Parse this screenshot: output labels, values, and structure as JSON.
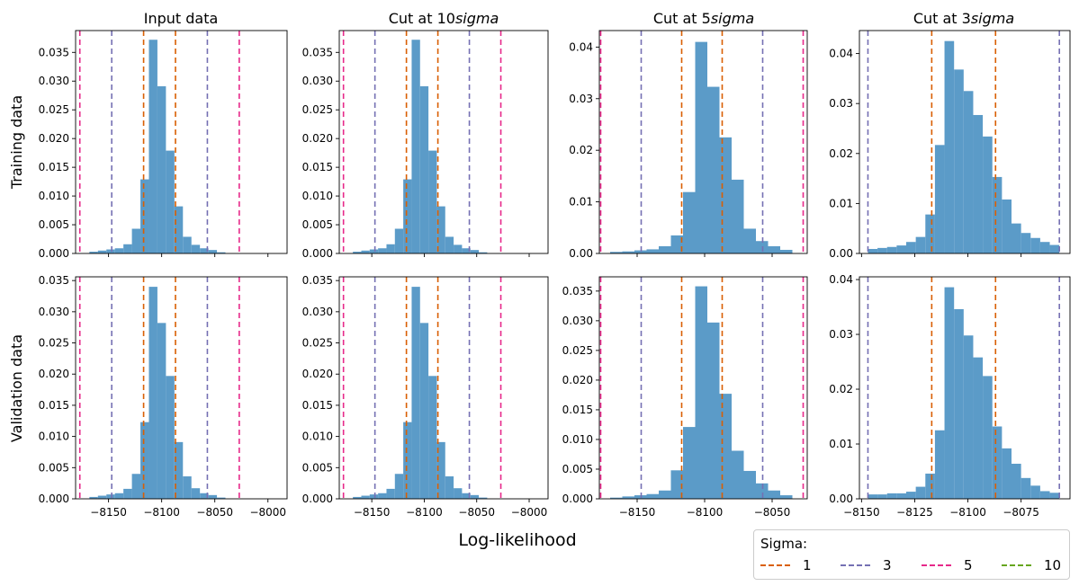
{
  "figure": {
    "x_label": "Log-likelihood",
    "column_titles": [
      {
        "prefix": "Input data",
        "italic": ""
      },
      {
        "prefix": "Cut at 10",
        "italic": "sigma"
      },
      {
        "prefix": "Cut at 5",
        "italic": "sigma"
      },
      {
        "prefix": "Cut at 3",
        "italic": "sigma"
      }
    ],
    "row_labels": [
      "Training data",
      "Validation data"
    ]
  },
  "legend": {
    "title": "Sigma:",
    "entries": [
      {
        "label": "1",
        "color": "#d95f02"
      },
      {
        "label": "3",
        "color": "#7570b3"
      },
      {
        "label": "5",
        "color": "#e7298a"
      },
      {
        "label": "10",
        "color": "#66a61e"
      }
    ]
  },
  "colors": {
    "bars": "#5b9bc8"
  },
  "chart_data": [
    {
      "type": "bar",
      "subtype": "histogram",
      "row": "Training data",
      "column": "Input data",
      "bins": [
        [
          -8168,
          -8160
        ],
        [
          -8160,
          -8152
        ],
        [
          -8152,
          -8144
        ],
        [
          -8144,
          -8136
        ],
        [
          -8136,
          -8128
        ],
        [
          -8128,
          -8120
        ],
        [
          -8120,
          -8112
        ],
        [
          -8112,
          -8104
        ],
        [
          -8104,
          -8096
        ],
        [
          -8096,
          -8088
        ],
        [
          -8088,
          -8080
        ],
        [
          -8080,
          -8072
        ],
        [
          -8072,
          -8064
        ],
        [
          -8064,
          -8056
        ],
        [
          -8056,
          -8048
        ],
        [
          -8048,
          -8040
        ]
      ],
      "values": [
        0.0003,
        0.0005,
        0.0007,
        0.0009,
        0.0016,
        0.0043,
        0.0129,
        0.0372,
        0.0291,
        0.0179,
        0.0082,
        0.0029,
        0.0015,
        0.0009,
        0.0006,
        0.0002
      ],
      "vlines": [
        {
          "sigma": "1",
          "x": [
            -8117,
            -8087
          ]
        },
        {
          "sigma": "3",
          "x": [
            -8147,
            -8057
          ]
        },
        {
          "sigma": "5",
          "x": [
            -8177,
            -8027
          ]
        }
      ],
      "xlim": [
        -8181,
        -7982
      ],
      "ylim": [
        0,
        0.0388
      ],
      "xticks": [
        -8150,
        -8100,
        -8050,
        -8000
      ],
      "yticks": [
        0,
        0.005,
        0.01,
        0.015,
        0.02,
        0.025,
        0.03,
        0.035
      ],
      "ytick_labels": [
        "0.000",
        "0.005",
        "0.010",
        "0.015",
        "0.020",
        "0.025",
        "0.030",
        "0.035"
      ]
    },
    {
      "type": "bar",
      "subtype": "histogram",
      "row": "Training data",
      "column": "Cut at 10sigma",
      "bins": [
        [
          -8168,
          -8160
        ],
        [
          -8160,
          -8152
        ],
        [
          -8152,
          -8144
        ],
        [
          -8144,
          -8136
        ],
        [
          -8136,
          -8128
        ],
        [
          -8128,
          -8120
        ],
        [
          -8120,
          -8112
        ],
        [
          -8112,
          -8104
        ],
        [
          -8104,
          -8096
        ],
        [
          -8096,
          -8088
        ],
        [
          -8088,
          -8080
        ],
        [
          -8080,
          -8072
        ],
        [
          -8072,
          -8064
        ],
        [
          -8064,
          -8056
        ],
        [
          -8056,
          -8048
        ],
        [
          -8048,
          -8040
        ]
      ],
      "values": [
        0.0003,
        0.0005,
        0.0007,
        0.0009,
        0.0016,
        0.0043,
        0.0129,
        0.0372,
        0.0291,
        0.0179,
        0.0082,
        0.0029,
        0.0015,
        0.0009,
        0.0006,
        0.0002
      ],
      "vlines": [
        {
          "sigma": "1",
          "x": [
            -8117,
            -8087
          ]
        },
        {
          "sigma": "3",
          "x": [
            -8147,
            -8057
          ]
        },
        {
          "sigma": "5",
          "x": [
            -8177,
            -8027
          ]
        }
      ],
      "xlim": [
        -8181,
        -7982
      ],
      "ylim": [
        0,
        0.0388
      ],
      "xticks": [
        -8150,
        -8100,
        -8050,
        -8000
      ],
      "yticks": [
        0,
        0.005,
        0.01,
        0.015,
        0.02,
        0.025,
        0.03,
        0.035
      ],
      "ytick_labels": [
        "0.000",
        "0.005",
        "0.010",
        "0.015",
        "0.020",
        "0.025",
        "0.030",
        "0.035"
      ]
    },
    {
      "type": "bar",
      "subtype": "histogram",
      "row": "Training data",
      "column": "Cut at 5sigma",
      "bins": [
        [
          -8170,
          -8161
        ],
        [
          -8161,
          -8152
        ],
        [
          -8152,
          -8143
        ],
        [
          -8143,
          -8134
        ],
        [
          -8134,
          -8125
        ],
        [
          -8125,
          -8116
        ],
        [
          -8116,
          -8107
        ],
        [
          -8107,
          -8098
        ],
        [
          -8098,
          -8089
        ],
        [
          -8089,
          -8080
        ],
        [
          -8080,
          -8071
        ],
        [
          -8071,
          -8062
        ],
        [
          -8062,
          -8053
        ],
        [
          -8053,
          -8044
        ],
        [
          -8044,
          -8035
        ]
      ],
      "values": [
        0.0003,
        0.0004,
        0.0006,
        0.0008,
        0.0014,
        0.0035,
        0.0119,
        0.041,
        0.0323,
        0.0225,
        0.0143,
        0.0048,
        0.0024,
        0.0014,
        0.0007
      ],
      "vlines": [
        {
          "sigma": "1",
          "x": [
            -8117,
            -8087
          ]
        },
        {
          "sigma": "3",
          "x": [
            -8147,
            -8057
          ]
        },
        {
          "sigma": "5",
          "x": [
            -8177,
            -8027
          ]
        }
      ],
      "xlim": [
        -8178,
        -8024
      ],
      "ylim": [
        0,
        0.0432
      ],
      "xticks": [
        -8150,
        -8100,
        -8050
      ],
      "yticks": [
        0,
        0.01,
        0.02,
        0.03,
        0.04
      ],
      "ytick_labels": [
        "0.00",
        "0.01",
        "0.02",
        "0.03",
        "0.04"
      ]
    },
    {
      "type": "bar",
      "subtype": "histogram",
      "row": "Training data",
      "column": "Cut at 3sigma",
      "bins": [
        [
          -8147,
          -8142.5
        ],
        [
          -8142.5,
          -8138
        ],
        [
          -8138,
          -8133.5
        ],
        [
          -8133.5,
          -8129
        ],
        [
          -8129,
          -8124.5
        ],
        [
          -8124.5,
          -8120
        ],
        [
          -8120,
          -8115.5
        ],
        [
          -8115.5,
          -8111
        ],
        [
          -8111,
          -8106.5
        ],
        [
          -8106.5,
          -8102
        ],
        [
          -8102,
          -8097.5
        ],
        [
          -8097.5,
          -8093
        ],
        [
          -8093,
          -8088.5
        ],
        [
          -8088.5,
          -8084
        ],
        [
          -8084,
          -8079.5
        ],
        [
          -8079.5,
          -8075
        ],
        [
          -8075,
          -8070.5
        ],
        [
          -8070.5,
          -8066
        ],
        [
          -8066,
          -8061.5
        ],
        [
          -8061.5,
          -8057
        ]
      ],
      "values": [
        0.0009,
        0.0011,
        0.0013,
        0.0016,
        0.0023,
        0.0033,
        0.0078,
        0.0217,
        0.0425,
        0.0368,
        0.0325,
        0.0277,
        0.0234,
        0.0153,
        0.0108,
        0.006,
        0.0041,
        0.0031,
        0.0023,
        0.0017
      ],
      "vlines": [
        {
          "sigma": "1",
          "x": [
            -8117,
            -8087
          ]
        },
        {
          "sigma": "3",
          "x": [
            -8147,
            -8057
          ]
        }
      ],
      "xlim": [
        -8151,
        -8052
      ],
      "ylim": [
        0,
        0.0446
      ],
      "xticks": [
        -8150,
        -8125,
        -8100,
        -8075
      ],
      "yticks": [
        0,
        0.01,
        0.02,
        0.03,
        0.04
      ],
      "ytick_labels": [
        "0.00",
        "0.01",
        "0.02",
        "0.03",
        "0.04"
      ]
    },
    {
      "type": "bar",
      "subtype": "histogram",
      "row": "Validation data",
      "column": "Input data",
      "bins": [
        [
          -8168,
          -8160
        ],
        [
          -8160,
          -8152
        ],
        [
          -8152,
          -8144
        ],
        [
          -8144,
          -8136
        ],
        [
          -8136,
          -8128
        ],
        [
          -8128,
          -8120
        ],
        [
          -8120,
          -8112
        ],
        [
          -8112,
          -8104
        ],
        [
          -8104,
          -8096
        ],
        [
          -8096,
          -8088
        ],
        [
          -8088,
          -8080
        ],
        [
          -8080,
          -8072
        ],
        [
          -8072,
          -8064
        ],
        [
          -8064,
          -8056
        ],
        [
          -8056,
          -8048
        ],
        [
          -8048,
          -8040
        ]
      ],
      "values": [
        0.0003,
        0.0005,
        0.0007,
        0.0009,
        0.0016,
        0.004,
        0.0123,
        0.034,
        0.0282,
        0.0197,
        0.0091,
        0.0036,
        0.0017,
        0.0009,
        0.0006,
        0.0002
      ],
      "vlines": [
        {
          "sigma": "1",
          "x": [
            -8117,
            -8087
          ]
        },
        {
          "sigma": "3",
          "x": [
            -8147,
            -8057
          ]
        },
        {
          "sigma": "5",
          "x": [
            -8177,
            -8027
          ]
        }
      ],
      "xlim": [
        -8181,
        -7982
      ],
      "ylim": [
        0,
        0.0356
      ],
      "xticks": [
        -8150,
        -8100,
        -8050,
        -8000
      ],
      "xtick_labels": [
        "−8150",
        "−8100",
        "−8050",
        "−8000"
      ],
      "yticks": [
        0,
        0.005,
        0.01,
        0.015,
        0.02,
        0.025,
        0.03,
        0.035
      ],
      "ytick_labels": [
        "0.000",
        "0.005",
        "0.010",
        "0.015",
        "0.020",
        "0.025",
        "0.030",
        "0.035"
      ]
    },
    {
      "type": "bar",
      "subtype": "histogram",
      "row": "Validation data",
      "column": "Cut at 10sigma",
      "bins": [
        [
          -8168,
          -8160
        ],
        [
          -8160,
          -8152
        ],
        [
          -8152,
          -8144
        ],
        [
          -8144,
          -8136
        ],
        [
          -8136,
          -8128
        ],
        [
          -8128,
          -8120
        ],
        [
          -8120,
          -8112
        ],
        [
          -8112,
          -8104
        ],
        [
          -8104,
          -8096
        ],
        [
          -8096,
          -8088
        ],
        [
          -8088,
          -8080
        ],
        [
          -8080,
          -8072
        ],
        [
          -8072,
          -8064
        ],
        [
          -8064,
          -8056
        ],
        [
          -8056,
          -8048
        ],
        [
          -8048,
          -8040
        ]
      ],
      "values": [
        0.0003,
        0.0005,
        0.0007,
        0.0009,
        0.0016,
        0.004,
        0.0123,
        0.034,
        0.0282,
        0.0197,
        0.0091,
        0.0036,
        0.0017,
        0.0009,
        0.0006,
        0.0002
      ],
      "vlines": [
        {
          "sigma": "1",
          "x": [
            -8117,
            -8087
          ]
        },
        {
          "sigma": "3",
          "x": [
            -8147,
            -8057
          ]
        },
        {
          "sigma": "5",
          "x": [
            -8177,
            -8027
          ]
        }
      ],
      "xlim": [
        -8181,
        -7982
      ],
      "ylim": [
        0,
        0.0356
      ],
      "xticks": [
        -8150,
        -8100,
        -8050,
        -8000
      ],
      "xtick_labels": [
        "−8150",
        "−8100",
        "−8050",
        "−8000"
      ],
      "yticks": [
        0,
        0.005,
        0.01,
        0.015,
        0.02,
        0.025,
        0.03,
        0.035
      ],
      "ytick_labels": [
        "0.000",
        "0.005",
        "0.010",
        "0.015",
        "0.020",
        "0.025",
        "0.030",
        "0.035"
      ]
    },
    {
      "type": "bar",
      "subtype": "histogram",
      "row": "Validation data",
      "column": "Cut at 5sigma",
      "bins": [
        [
          -8170,
          -8161
        ],
        [
          -8161,
          -8152
        ],
        [
          -8152,
          -8143
        ],
        [
          -8143,
          -8134
        ],
        [
          -8134,
          -8125
        ],
        [
          -8125,
          -8116
        ],
        [
          -8116,
          -8107
        ],
        [
          -8107,
          -8098
        ],
        [
          -8098,
          -8089
        ],
        [
          -8089,
          -8080
        ],
        [
          -8080,
          -8071
        ],
        [
          -8071,
          -8062
        ],
        [
          -8062,
          -8053
        ],
        [
          -8053,
          -8044
        ],
        [
          -8044,
          -8035
        ]
      ],
      "values": [
        0.0002,
        0.0004,
        0.0006,
        0.0008,
        0.0014,
        0.0048,
        0.0121,
        0.0358,
        0.0297,
        0.0177,
        0.0081,
        0.0047,
        0.0026,
        0.0014,
        0.0006
      ],
      "vlines": [
        {
          "sigma": "1",
          "x": [
            -8117,
            -8087
          ]
        },
        {
          "sigma": "3",
          "x": [
            -8147,
            -8057
          ]
        },
        {
          "sigma": "5",
          "x": [
            -8177,
            -8027
          ]
        }
      ],
      "xlim": [
        -8178,
        -8024
      ],
      "ylim": [
        0,
        0.0374
      ],
      "xticks": [
        -8150,
        -8100,
        -8050
      ],
      "xtick_labels": [
        "−8150",
        "−8100",
        "−8050"
      ],
      "yticks": [
        0,
        0.005,
        0.01,
        0.015,
        0.02,
        0.025,
        0.03,
        0.035
      ],
      "ytick_labels": [
        "0.000",
        "0.005",
        "0.010",
        "0.015",
        "0.020",
        "0.025",
        "0.030",
        "0.035"
      ]
    },
    {
      "type": "bar",
      "subtype": "histogram",
      "row": "Validation data",
      "column": "Cut at 3sigma",
      "bins": [
        [
          -8147,
          -8142.5
        ],
        [
          -8142.5,
          -8138
        ],
        [
          -8138,
          -8133.5
        ],
        [
          -8133.5,
          -8129
        ],
        [
          -8129,
          -8124.5
        ],
        [
          -8124.5,
          -8120
        ],
        [
          -8120,
          -8115.5
        ],
        [
          -8115.5,
          -8111
        ],
        [
          -8111,
          -8106.5
        ],
        [
          -8106.5,
          -8102
        ],
        [
          -8102,
          -8097.5
        ],
        [
          -8097.5,
          -8093
        ],
        [
          -8093,
          -8088.5
        ],
        [
          -8088.5,
          -8084
        ],
        [
          -8084,
          -8079.5
        ],
        [
          -8079.5,
          -8075
        ],
        [
          -8075,
          -8070.5
        ],
        [
          -8070.5,
          -8066
        ],
        [
          -8066,
          -8061.5
        ],
        [
          -8061.5,
          -8057
        ]
      ],
      "values": [
        0.0008,
        0.0008,
        0.001,
        0.001,
        0.0013,
        0.0022,
        0.0046,
        0.0125,
        0.0386,
        0.0346,
        0.0298,
        0.0258,
        0.0224,
        0.0132,
        0.0092,
        0.0064,
        0.0038,
        0.0024,
        0.0014,
        0.0011
      ],
      "vlines": [
        {
          "sigma": "1",
          "x": [
            -8117,
            -8087
          ]
        },
        {
          "sigma": "3",
          "x": [
            -8147,
            -8057
          ]
        }
      ],
      "xlim": [
        -8151,
        -8052
      ],
      "ylim": [
        0,
        0.0405
      ],
      "xticks": [
        -8150,
        -8125,
        -8100,
        -8075
      ],
      "xtick_labels": [
        "−8150",
        "−8125",
        "−8100",
        "−8075"
      ],
      "yticks": [
        0,
        0.01,
        0.02,
        0.03,
        0.04
      ],
      "ytick_labels": [
        "0.00",
        "0.01",
        "0.02",
        "0.03",
        "0.04"
      ]
    }
  ]
}
